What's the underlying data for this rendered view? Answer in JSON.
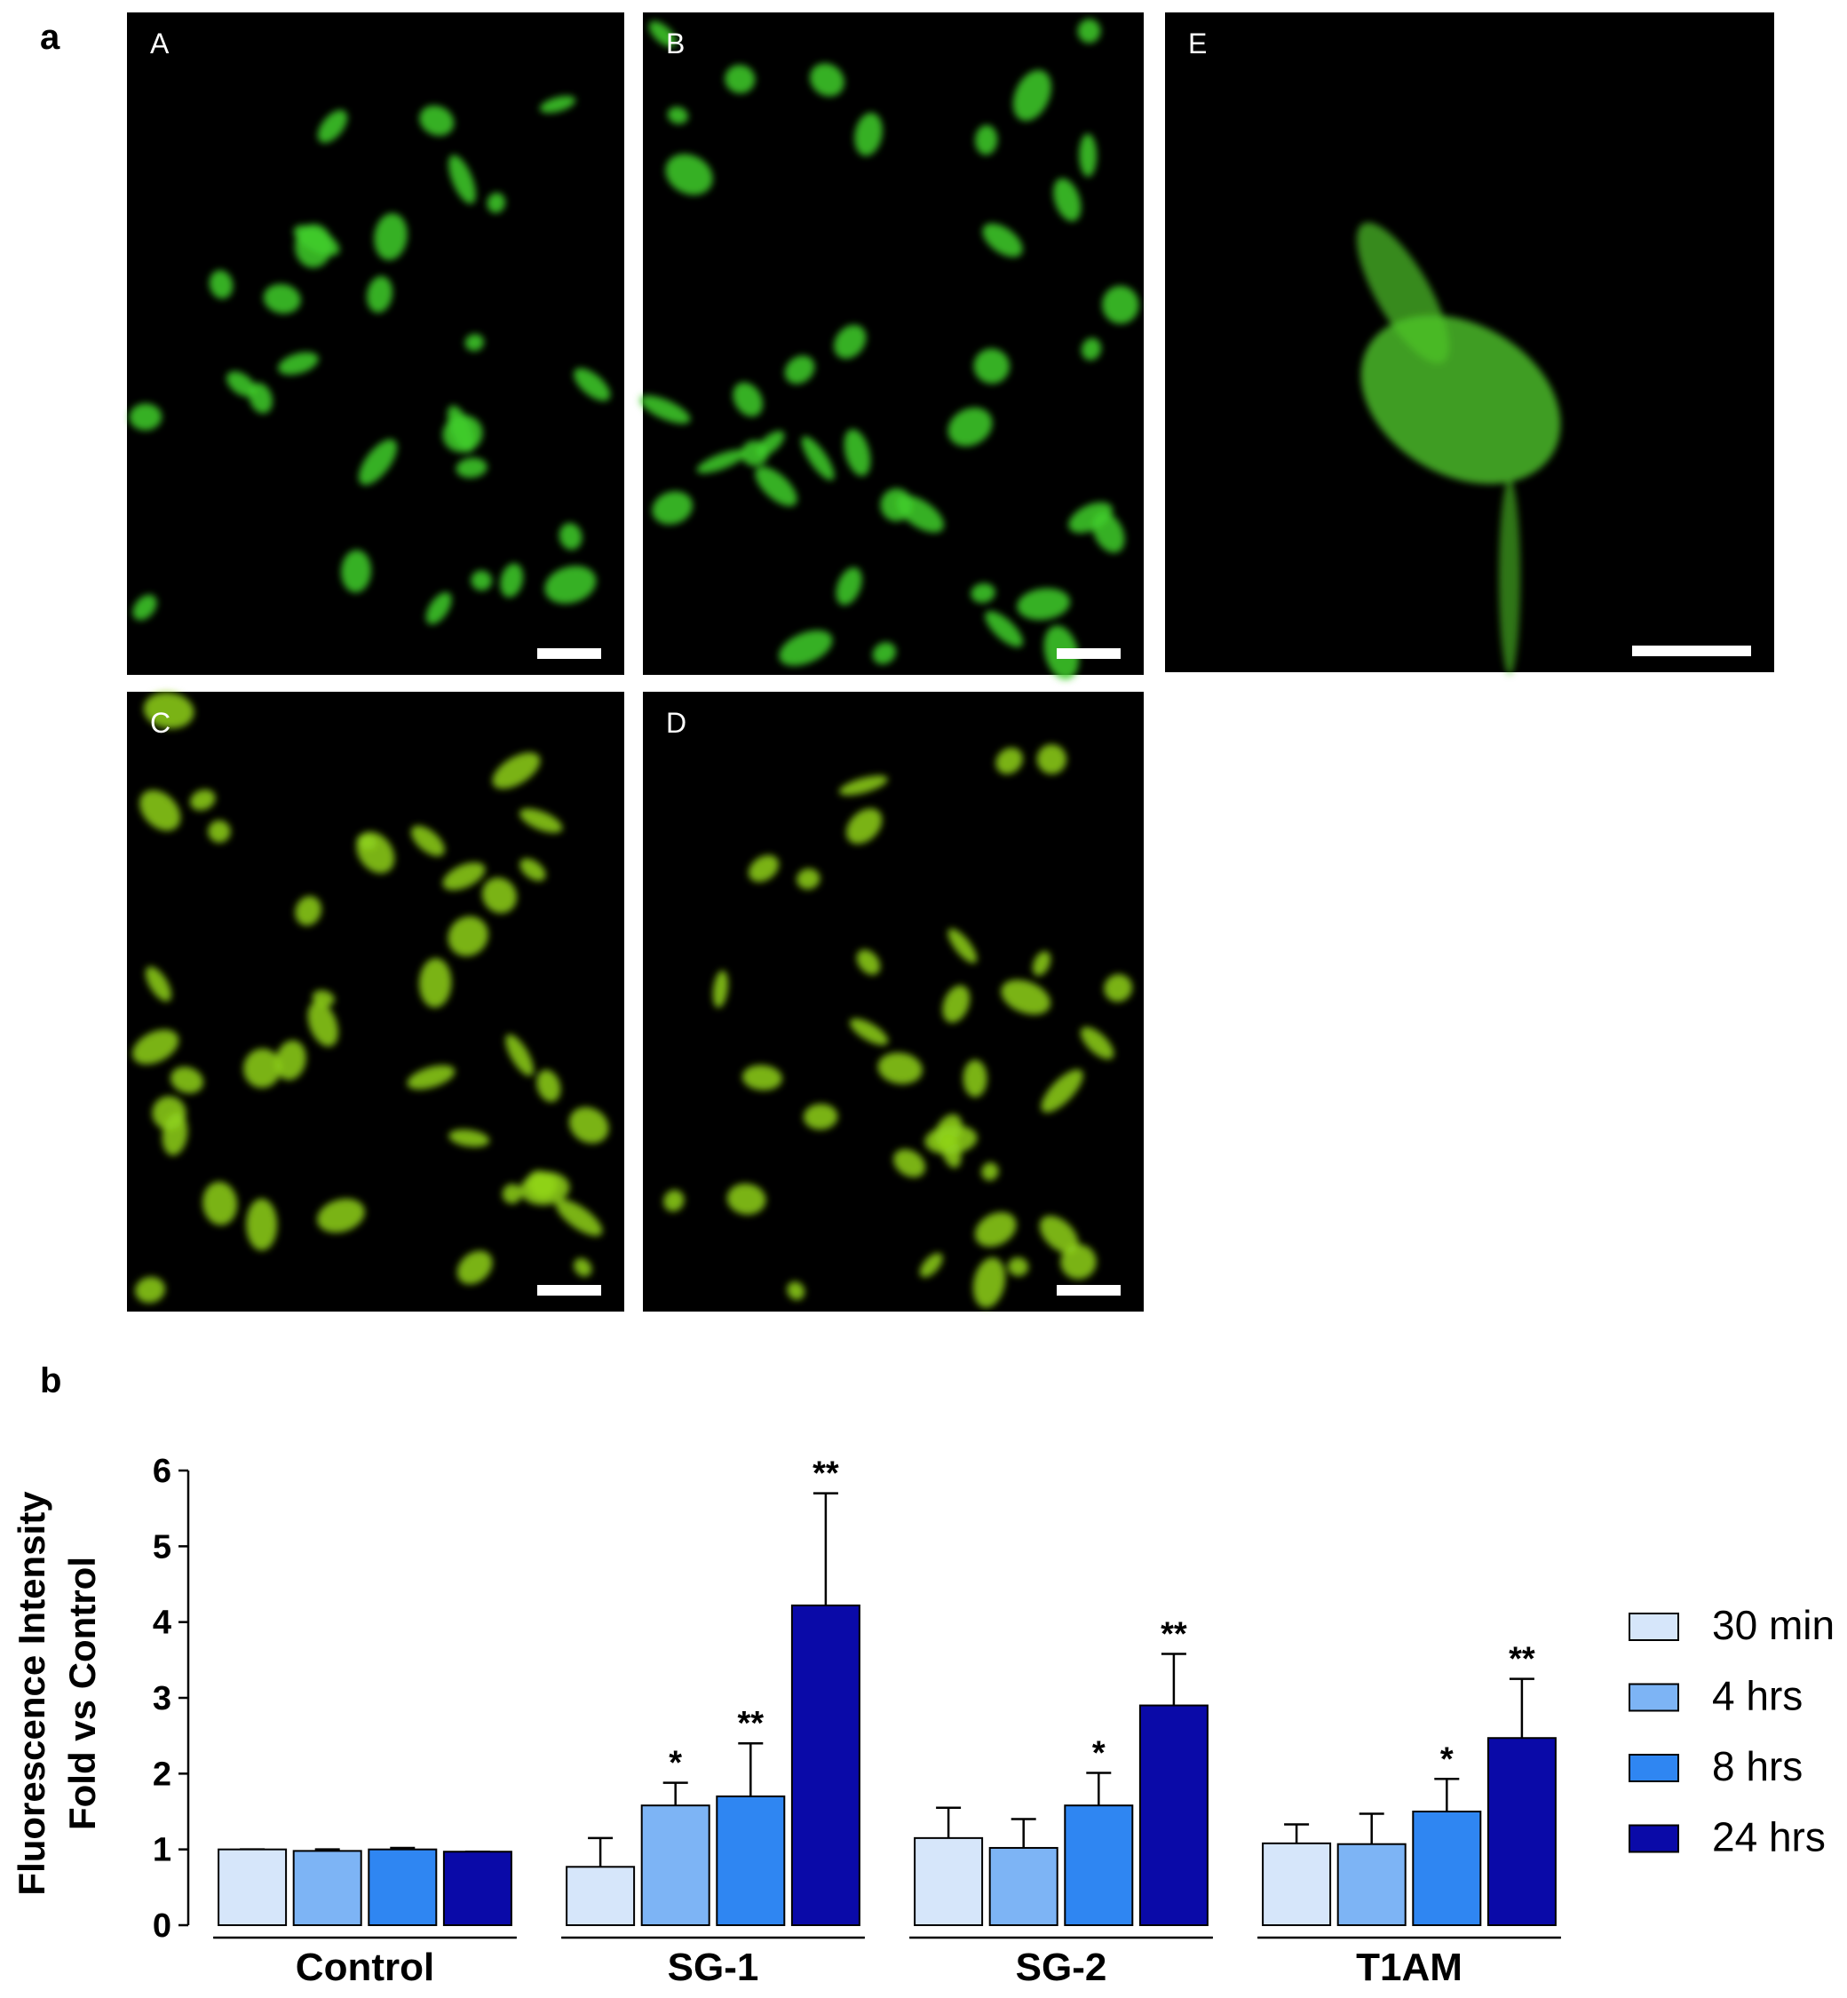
{
  "figure": {
    "panel_a_label": "a",
    "panel_b_label": "b",
    "image_labels": [
      "A",
      "B",
      "C",
      "D",
      "E"
    ]
  },
  "chart_data": {
    "type": "bar",
    "y_label": [
      "Fluorescence Intensity",
      "Fold vs Control"
    ],
    "categories": [
      "Control",
      "SG-1",
      "SG-2",
      "T1AM"
    ],
    "ylim": [
      0,
      6
    ],
    "yticks": [
      0,
      1,
      2,
      3,
      4,
      5,
      6
    ],
    "series": [
      {
        "name": "30 min",
        "color": "#d6e6fa",
        "values": [
          1.0,
          0.77,
          1.15,
          1.08
        ],
        "errors": [
          0,
          0.38,
          0.4,
          0.25
        ],
        "significance": [
          null,
          null,
          null,
          null
        ]
      },
      {
        "name": "4 hrs",
        "color": "#7db4f5",
        "values": [
          0.98,
          1.58,
          1.02,
          1.07
        ],
        "errors": [
          0.02,
          0.3,
          0.38,
          0.4
        ],
        "significance": [
          null,
          "*",
          null,
          null
        ]
      },
      {
        "name": "8 hrs",
        "color": "#2f86f2",
        "values": [
          1.0,
          1.7,
          1.58,
          1.5
        ],
        "errors": [
          0.02,
          0.7,
          0.43,
          0.43
        ],
        "significance": [
          null,
          "**",
          "*",
          "*"
        ]
      },
      {
        "name": "24 hrs",
        "color": "#0a0aa8",
        "values": [
          0.97,
          4.22,
          2.9,
          2.47
        ],
        "errors": [
          0,
          1.48,
          0.68,
          0.78
        ],
        "significance": [
          null,
          "**",
          "**",
          "**"
        ]
      }
    ]
  }
}
